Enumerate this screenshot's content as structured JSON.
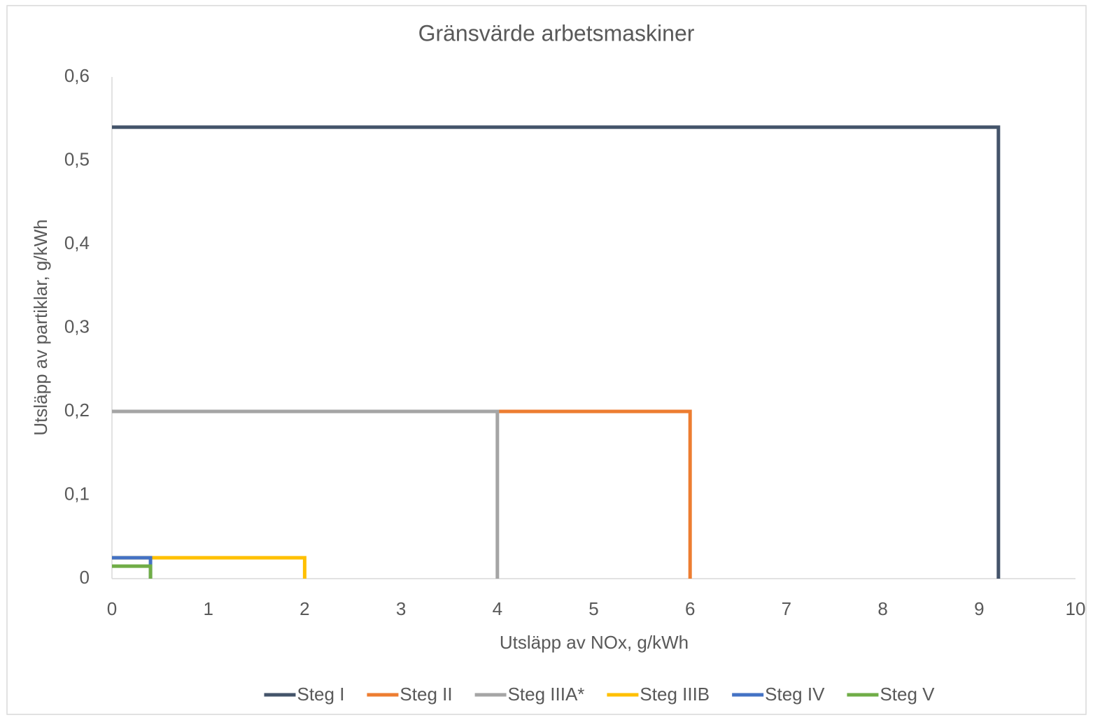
{
  "chart_data": {
    "type": "line",
    "title": "Gränsvärde arbetsmaskiner",
    "x_label": "Utsläpp av NOx, g/kWh",
    "y_label": "Utsläpp av partiklar, g/kWh",
    "xlim": [
      0,
      10
    ],
    "xticks": [
      0,
      1,
      2,
      3,
      4,
      5,
      6,
      7,
      8,
      9,
      10
    ],
    "ylim": [
      0,
      0.6
    ],
    "yticks": [
      0,
      {
        "value": 0.1,
        "label": "0,1"
      },
      {
        "value": 0.2,
        "label": "0,2"
      },
      {
        "value": 0.3,
        "label": "0,3"
      },
      {
        "value": 0.4,
        "label": "0,4"
      },
      {
        "value": 0.5,
        "label": "0,5"
      },
      {
        "value": 0.6,
        "label": "0,6"
      }
    ],
    "grid": false,
    "legend": "bottom",
    "series": [
      {
        "name": "Steg I",
        "color": "#44546a",
        "x": [
          0,
          9.2,
          9.2
        ],
        "values": [
          0.54,
          0.54,
          0
        ]
      },
      {
        "name": "Steg II",
        "color": "#ed7d31",
        "x": [
          0,
          6,
          6
        ],
        "values": [
          0.2,
          0.2,
          0
        ]
      },
      {
        "name": "Steg IIIA*",
        "color": "#a5a5a5",
        "x": [
          0,
          4,
          4
        ],
        "values": [
          0.2,
          0.2,
          0
        ]
      },
      {
        "name": "Steg IIIB",
        "color": "#ffc000",
        "x": [
          0,
          2,
          2
        ],
        "values": [
          0.025,
          0.025,
          0
        ]
      },
      {
        "name": "Steg IV",
        "color": "#4472c4",
        "x": [
          0,
          0.4,
          0.4
        ],
        "values": [
          0.025,
          0.025,
          0
        ]
      },
      {
        "name": "Steg V",
        "color": "#70ad47",
        "x": [
          0,
          0.4,
          0.4
        ],
        "values": [
          0.015,
          0.015,
          0
        ]
      }
    ]
  }
}
